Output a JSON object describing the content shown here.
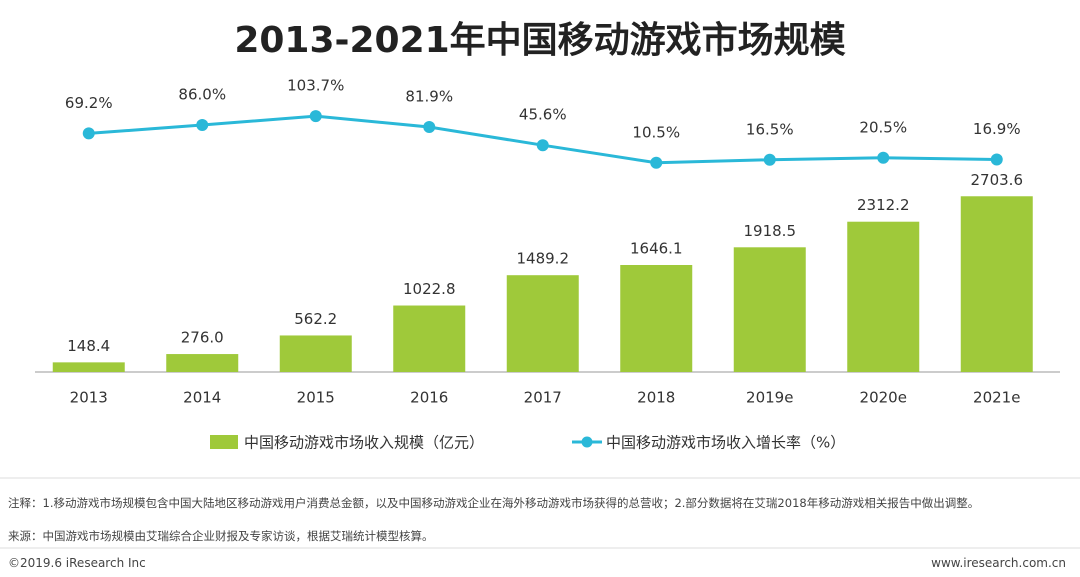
{
  "chart_data": {
    "type": "bar",
    "title": "2013-2021年中国移动游戏市场规模",
    "categories": [
      "2013",
      "2014",
      "2015",
      "2016",
      "2017",
      "2018",
      "2019e",
      "2020e",
      "2021e"
    ],
    "series": [
      {
        "name": "中国移动游戏市场收入规模（亿元）",
        "type": "bar",
        "color": "#9fc93a",
        "values": [
          148.4,
          276.0,
          562.2,
          1022.8,
          1489.2,
          1646.1,
          1918.5,
          2312.2,
          2703.6
        ],
        "value_labels": [
          "148.4",
          "276.0",
          "562.2",
          "1022.8",
          "1489.2",
          "1646.1",
          "1918.5",
          "2312.2",
          "2703.6"
        ]
      },
      {
        "name": "中国移动游戏市场收入增长率（%）",
        "type": "line",
        "axis": "y2",
        "color": "#2ab8d8",
        "values": [
          69.2,
          86.0,
          103.7,
          81.9,
          45.6,
          10.5,
          16.5,
          20.5,
          16.9
        ],
        "value_labels": [
          "69.2%",
          "86.0%",
          "103.7%",
          "81.9%",
          "45.6%",
          "10.5%",
          "16.5%",
          "20.5%",
          "16.9%"
        ]
      }
    ],
    "ylim": [
      0,
      3000
    ],
    "y2lim": [
      0,
      200
    ],
    "grid": false,
    "legend": "bottom"
  },
  "footer": {
    "note": "注释：1.移动游戏市场规模包含中国大陆地区移动游戏用户消费总金额，以及中国移动游戏企业在海外移动游戏市场获得的总营收；2.部分数据将在艾瑞2018年移动游戏相关报告中做出调整。",
    "source": "来源：中国游戏市场规模由艾瑞综合企业财报及专家访谈，根据艾瑞统计模型核算。",
    "copyright": "©2019.6 iResearch Inc",
    "website": "www.iresearch.com.cn"
  }
}
